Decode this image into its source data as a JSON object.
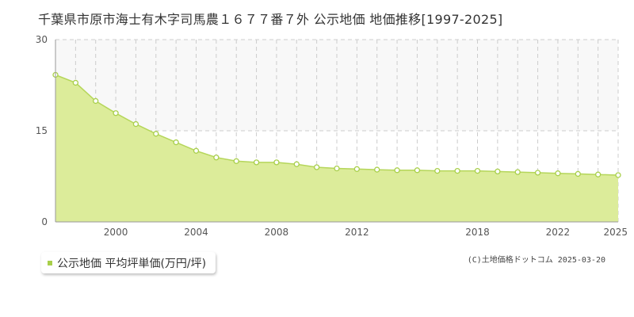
{
  "chart_data": {
    "type": "area",
    "title": "千葉県市原市海士有木字司馬農１６７７番７外 公示地価 地価推移[1997-2025]",
    "x": [
      1997,
      1998,
      1999,
      2000,
      2001,
      2002,
      2003,
      2004,
      2005,
      2006,
      2007,
      2008,
      2009,
      2010,
      2011,
      2012,
      2013,
      2014,
      2015,
      2016,
      2017,
      2018,
      2019,
      2020,
      2021,
      2022,
      2023,
      2024,
      2025
    ],
    "series": [
      {
        "name": "公示地価 平均坪単価(万円/坪)",
        "values": [
          24.2,
          22.9,
          19.9,
          17.9,
          16.1,
          14.5,
          13.1,
          11.7,
          10.6,
          10.0,
          9.8,
          9.8,
          9.5,
          9.0,
          8.8,
          8.7,
          8.6,
          8.5,
          8.5,
          8.4,
          8.4,
          8.4,
          8.3,
          8.2,
          8.1,
          8.0,
          7.9,
          7.8,
          7.7
        ]
      }
    ],
    "xlim": [
      1997,
      2025
    ],
    "ylim": [
      0,
      30
    ],
    "y_ticks": [
      "0",
      "15",
      "30"
    ],
    "x_ticks": [
      "2000",
      "2004",
      "2008",
      "2012",
      "2018",
      "2022",
      "2025"
    ],
    "grid": true,
    "legend": "bottom-left",
    "colors": {
      "fill": "#dcec9a",
      "line": "#b5d65a",
      "point_stroke": "#a8cf4a",
      "band": "#f8f8f8",
      "grid": "#cccccc"
    }
  },
  "legend": {
    "label": "公示地価 平均坪単価(万円/坪)"
  },
  "credit": "(C)土地価格ドットコム 2025-03-20"
}
